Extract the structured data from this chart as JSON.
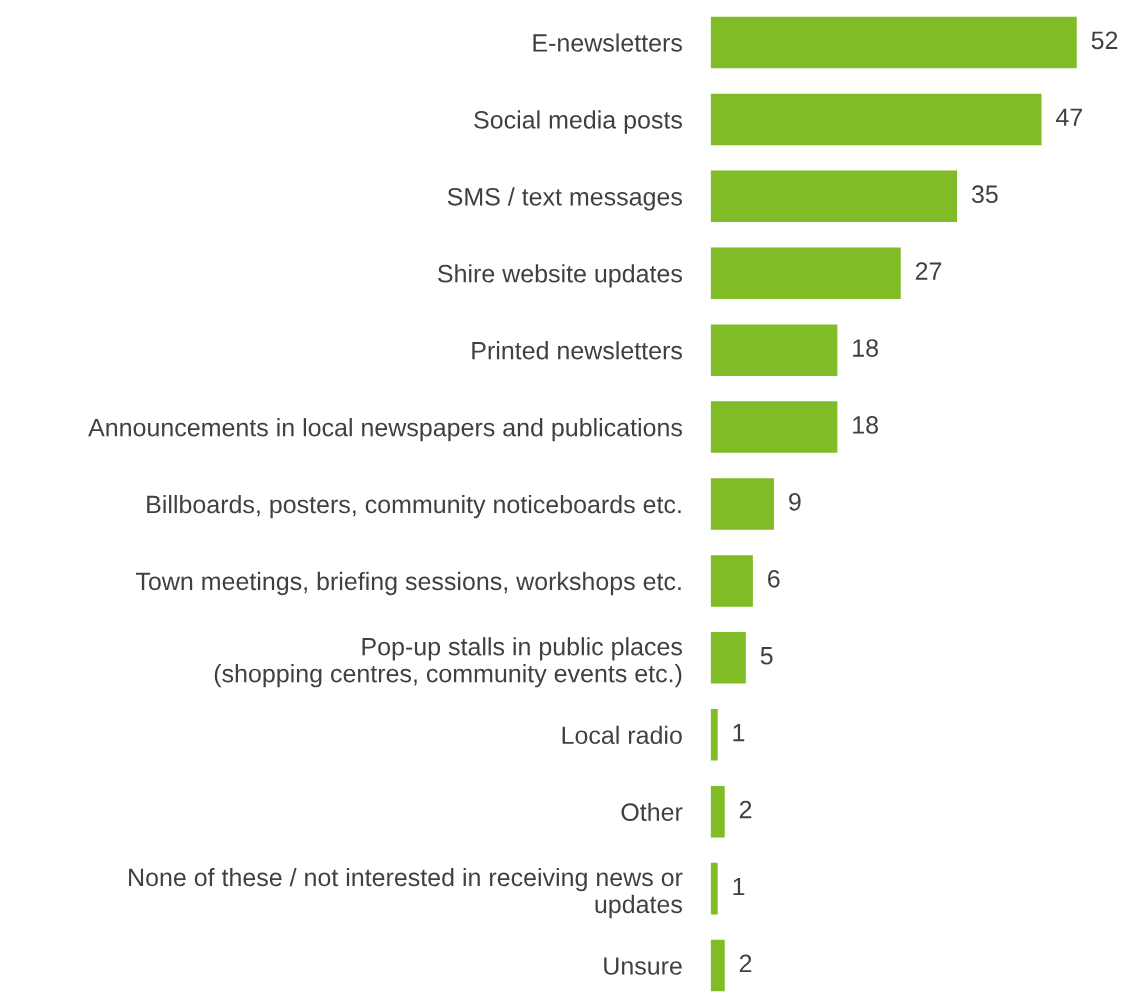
{
  "chart_data": {
    "type": "bar",
    "orientation": "horizontal",
    "categories": [
      "E-newsletters",
      "Social media posts",
      "SMS / text messages",
      "Shire website updates",
      "Printed newsletters",
      "Announcements in local newspapers and publications",
      "Billboards, posters, community noticeboards etc.",
      "Town meetings, briefing sessions, workshops etc.",
      "Pop-up stalls in public places\n(shopping centres, community events etc.)",
      "Local radio",
      "Other",
      "None of these / not interested in receiving news or\nupdates",
      "Unsure"
    ],
    "values": [
      52,
      47,
      35,
      27,
      18,
      18,
      9,
      6,
      5,
      1,
      2,
      1,
      2
    ],
    "color": "#80bc26",
    "data_labels": true,
    "grid": false,
    "legend": false
  }
}
